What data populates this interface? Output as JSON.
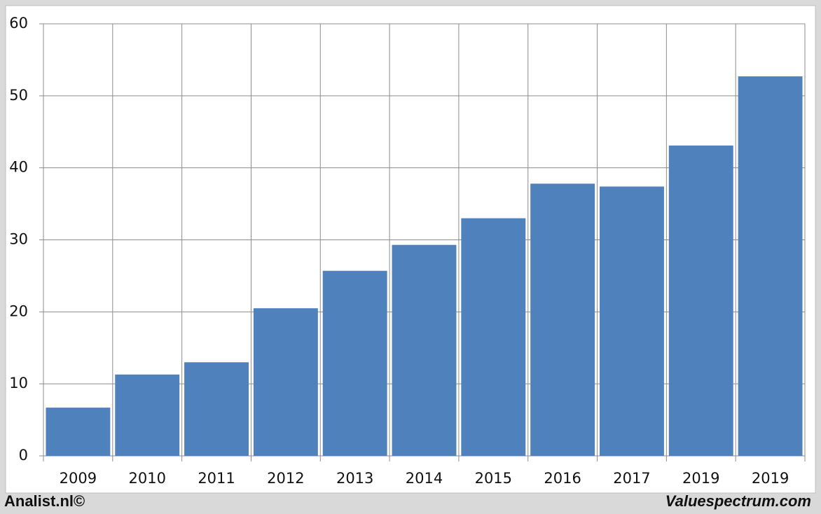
{
  "chart_data": {
    "type": "bar",
    "categories": [
      "2009",
      "2010",
      "2011",
      "2012",
      "2013",
      "2014",
      "2015",
      "2016",
      "2017",
      "2019",
      "2019"
    ],
    "values": [
      6.7,
      11.3,
      13.0,
      20.5,
      25.7,
      29.3,
      33.0,
      37.8,
      37.4,
      43.1,
      52.7
    ],
    "color": "#4f81bd",
    "ylim": [
      0,
      60
    ],
    "yticks": [
      0,
      10,
      20,
      30,
      40,
      50,
      60
    ],
    "grid": true
  },
  "footer": {
    "left": "Analist.nl©",
    "right": "Valuespectrum.com"
  }
}
